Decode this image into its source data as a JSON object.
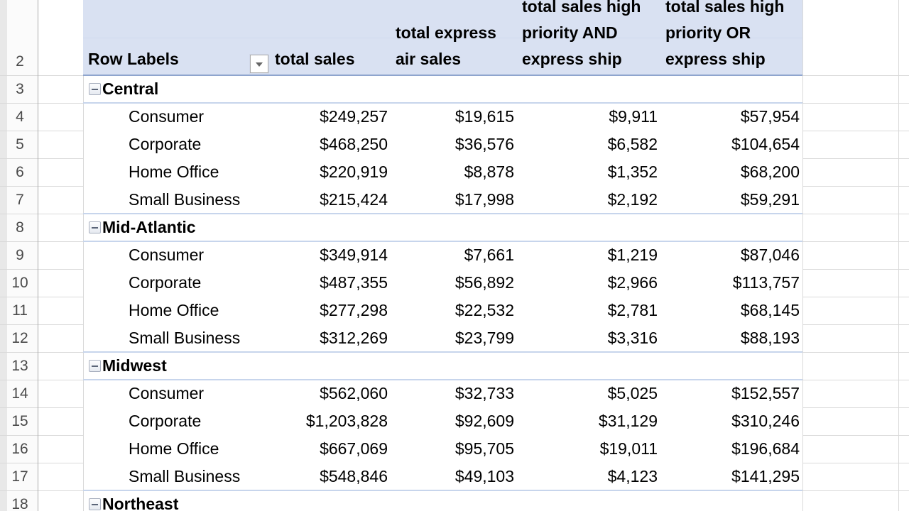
{
  "sheet": {
    "row_numbers": [
      "2",
      "3",
      "4",
      "5",
      "6",
      "7",
      "8",
      "9",
      "10",
      "11",
      "12",
      "13",
      "14",
      "15",
      "16",
      "17",
      "18"
    ]
  },
  "pivot": {
    "header": {
      "row_labels": "Row Labels",
      "filter_icon": "chevron-down-icon",
      "value_columns": [
        "total sales",
        "total express\nair sales",
        "total sales high\npriority AND\nexpress ship",
        "total sales high\npriority OR\nexpress ship"
      ]
    },
    "groups": [
      {
        "region": "Central",
        "row": 3,
        "collapse_icon": "minus-icon",
        "items": [
          {
            "row": 4,
            "label": "Consumer",
            "values": [
              "$249,257",
              "$19,615",
              "$9,911",
              "$57,954"
            ]
          },
          {
            "row": 5,
            "label": "Corporate",
            "values": [
              "$468,250",
              "$36,576",
              "$6,582",
              "$104,654"
            ]
          },
          {
            "row": 6,
            "label": "Home Office",
            "values": [
              "$220,919",
              "$8,878",
              "$1,352",
              "$68,200"
            ]
          },
          {
            "row": 7,
            "label": "Small Business",
            "values": [
              "$215,424",
              "$17,998",
              "$2,192",
              "$59,291"
            ]
          }
        ]
      },
      {
        "region": "Mid-Atlantic",
        "row": 8,
        "collapse_icon": "minus-icon",
        "items": [
          {
            "row": 9,
            "label": "Consumer",
            "values": [
              "$349,914",
              "$7,661",
              "$1,219",
              "$87,046"
            ]
          },
          {
            "row": 10,
            "label": "Corporate",
            "values": [
              "$487,355",
              "$56,892",
              "$2,966",
              "$113,757"
            ]
          },
          {
            "row": 11,
            "label": "Home Office",
            "values": [
              "$277,298",
              "$22,532",
              "$2,781",
              "$68,145"
            ]
          },
          {
            "row": 12,
            "label": "Small Business",
            "values": [
              "$312,269",
              "$23,799",
              "$3,316",
              "$88,193"
            ]
          }
        ]
      },
      {
        "region": "Midwest",
        "row": 13,
        "collapse_icon": "minus-icon",
        "items": [
          {
            "row": 14,
            "label": "Consumer",
            "values": [
              "$562,060",
              "$32,733",
              "$5,025",
              "$152,557"
            ]
          },
          {
            "row": 15,
            "label": "Corporate",
            "values": [
              "$1,203,828",
              "$92,609",
              "$31,129",
              "$310,246"
            ]
          },
          {
            "row": 16,
            "label": "Home Office",
            "values": [
              "$667,069",
              "$95,705",
              "$19,011",
              "$196,684"
            ]
          },
          {
            "row": 17,
            "label": "Small Business",
            "values": [
              "$548,846",
              "$49,103",
              "$4,123",
              "$141,295"
            ]
          }
        ]
      },
      {
        "region": "Northeast",
        "row": 18,
        "collapse_icon": "minus-icon",
        "items": []
      }
    ]
  },
  "colors": {
    "header_fill": "#D9E1F2",
    "header_border": "#8FA5CE",
    "group_line": "#C7D5EC",
    "gridline": "#D9D9D9",
    "gutter_border": "#ACACAC",
    "gutter_strip": "#E8E8E8",
    "gutter_bg": "#FBFBFB",
    "row_number_text": "#4A4A4A",
    "text": "#000000"
  }
}
